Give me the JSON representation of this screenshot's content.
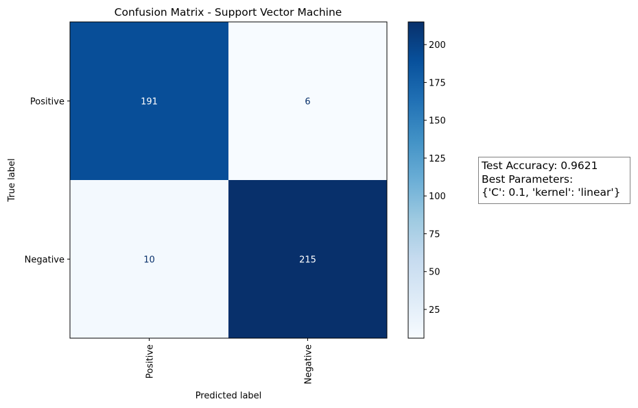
{
  "chart_data": {
    "type": "heatmap",
    "title": "Confusion Matrix - Support Vector Machine",
    "xlabel": "Predicted label",
    "ylabel": "True label",
    "x_categories": [
      "Positive",
      "Negative"
    ],
    "y_categories": [
      "Positive",
      "Negative"
    ],
    "matrix": [
      [
        191,
        6
      ],
      [
        10,
        215
      ]
    ],
    "colormap": "Blues",
    "colorbar": {
      "vmin": 6,
      "vmax": 215,
      "ticks": [
        25,
        50,
        75,
        100,
        125,
        150,
        175,
        200
      ],
      "tick_labels": [
        "25",
        "50",
        "75",
        "100",
        "125",
        "150",
        "175",
        "200"
      ]
    },
    "grid": false
  },
  "annotation": {
    "lines": [
      "Test Accuracy: 0.9621",
      "Best Parameters:",
      "{'C': 0.1, 'kernel': 'linear'}"
    ]
  }
}
